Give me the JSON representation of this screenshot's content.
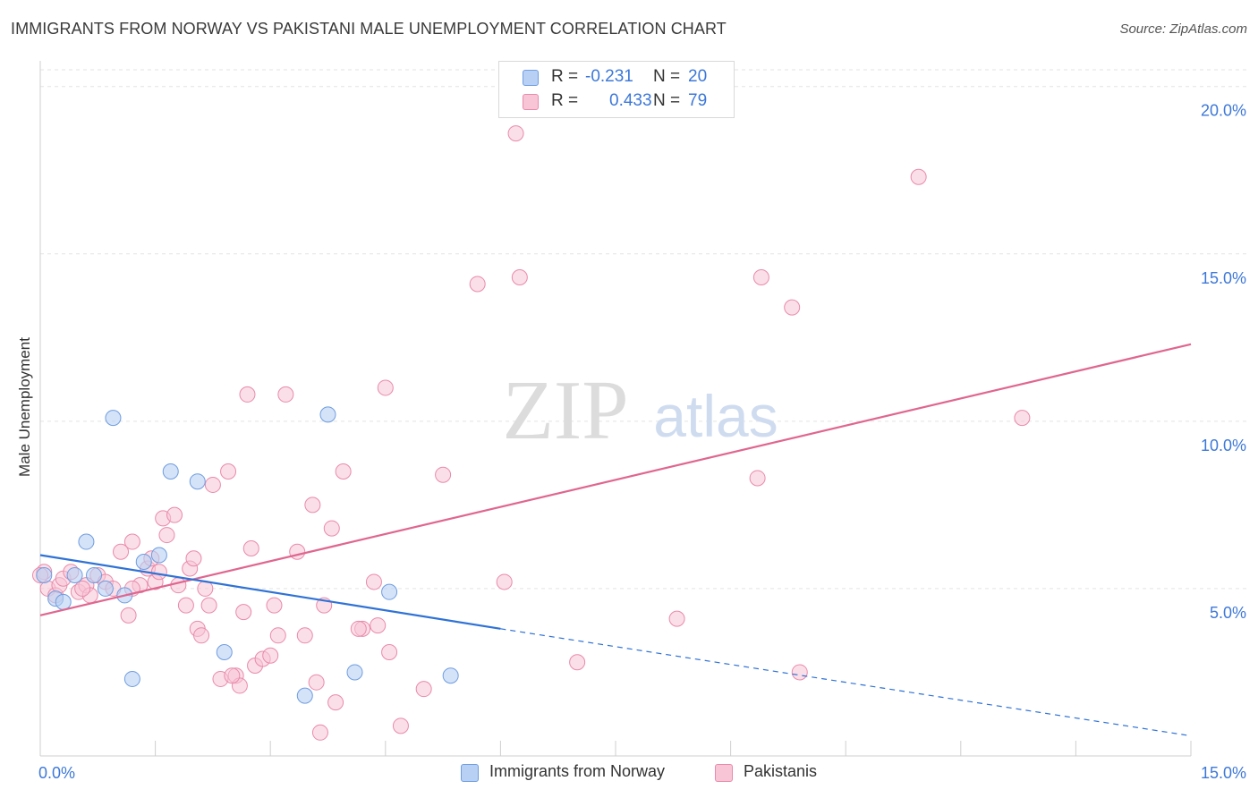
{
  "header": {
    "title": "IMMIGRANTS FROM NORWAY VS PAKISTANI MALE UNEMPLOYMENT CORRELATION CHART",
    "source": "Source: ZipAtlas.com"
  },
  "watermark": {
    "zip": "ZIP",
    "atlas": "atlas"
  },
  "legend_top": {
    "rows": [
      {
        "r_label": "R =",
        "r_value": "-0.231",
        "n_label": "N =",
        "n_value": "20"
      },
      {
        "r_label": "R =",
        "r_value": "0.433",
        "n_label": "N =",
        "n_value": "79"
      }
    ]
  },
  "legend_bottom": {
    "items": [
      {
        "label": "Immigrants from Norway"
      },
      {
        "label": "Pakistanis"
      }
    ]
  },
  "colors": {
    "norway_fill": "#b8d0f4",
    "norway_stroke": "#6f9de0",
    "norway_line": "#2f72d6",
    "pak_fill": "#f8c5d6",
    "pak_stroke": "#e98aab",
    "pak_line": "#e0668f",
    "grid": "#e3e3e3",
    "tick_label": "#3d78d8"
  },
  "chart_data": {
    "type": "scatter",
    "title": "IMMIGRANTS FROM NORWAY VS PAKISTANI MALE UNEMPLOYMENT CORRELATION CHART",
    "xlabel": "",
    "ylabel": "Male Unemployment",
    "xlim": [
      0,
      15
    ],
    "ylim": [
      0,
      20.5
    ],
    "x_tick_labels": [
      "0.0%",
      "15.0%"
    ],
    "y_ticks": [
      5,
      10,
      15,
      20
    ],
    "y_tick_labels": [
      "5.0%",
      "10.0%",
      "15.0%",
      "20.0%"
    ],
    "grid": "horizontal dashed",
    "legend_position": "top-center and bottom",
    "series": [
      {
        "name": "Immigrants from Norway",
        "r": -0.231,
        "n": 20,
        "trend": {
          "x0": 0.0,
          "y0": 6.0,
          "x_solid_end": 6.0,
          "y_solid_end": 3.8,
          "x1": 15.0,
          "y1": 0.6
        },
        "points": [
          [
            0.05,
            5.4
          ],
          [
            0.2,
            4.7
          ],
          [
            0.3,
            4.6
          ],
          [
            0.45,
            5.4
          ],
          [
            0.6,
            6.4
          ],
          [
            0.7,
            5.4
          ],
          [
            0.85,
            5.0
          ],
          [
            0.95,
            10.1
          ],
          [
            1.1,
            4.8
          ],
          [
            1.2,
            2.3
          ],
          [
            1.35,
            5.8
          ],
          [
            1.55,
            6.0
          ],
          [
            1.7,
            8.5
          ],
          [
            2.05,
            8.2
          ],
          [
            2.4,
            3.1
          ],
          [
            3.45,
            1.8
          ],
          [
            3.75,
            10.2
          ],
          [
            4.1,
            2.5
          ],
          [
            4.55,
            4.9
          ],
          [
            5.35,
            2.4
          ]
        ]
      },
      {
        "name": "Pakistanis",
        "r": 0.433,
        "n": 79,
        "trend": {
          "x0": 0.0,
          "y0": 4.2,
          "x1": 15.0,
          "y1": 12.3
        },
        "points": [
          [
            0.05,
            5.5
          ],
          [
            0.1,
            5.0
          ],
          [
            0.2,
            4.8
          ],
          [
            0.25,
            5.1
          ],
          [
            0.3,
            5.3
          ],
          [
            0.4,
            5.5
          ],
          [
            0.5,
            4.9
          ],
          [
            0.6,
            5.1
          ],
          [
            0.65,
            4.8
          ],
          [
            0.75,
            5.4
          ],
          [
            0.85,
            5.2
          ],
          [
            0.95,
            5.0
          ],
          [
            1.05,
            6.1
          ],
          [
            1.15,
            4.2
          ],
          [
            1.2,
            6.4
          ],
          [
            1.3,
            5.1
          ],
          [
            1.4,
            5.6
          ],
          [
            1.45,
            5.9
          ],
          [
            1.5,
            5.2
          ],
          [
            1.55,
            5.5
          ],
          [
            1.6,
            7.1
          ],
          [
            1.65,
            6.6
          ],
          [
            1.75,
            7.2
          ],
          [
            1.8,
            5.1
          ],
          [
            1.9,
            4.5
          ],
          [
            1.95,
            5.6
          ],
          [
            2.0,
            5.9
          ],
          [
            2.05,
            3.8
          ],
          [
            2.1,
            3.6
          ],
          [
            2.15,
            5.0
          ],
          [
            2.2,
            4.5
          ],
          [
            2.25,
            8.1
          ],
          [
            2.35,
            2.3
          ],
          [
            2.45,
            8.5
          ],
          [
            2.55,
            2.4
          ],
          [
            2.6,
            2.1
          ],
          [
            2.65,
            4.3
          ],
          [
            2.7,
            10.8
          ],
          [
            2.75,
            6.2
          ],
          [
            2.8,
            2.7
          ],
          [
            2.9,
            2.9
          ],
          [
            3.0,
            3.0
          ],
          [
            3.05,
            4.5
          ],
          [
            3.1,
            3.6
          ],
          [
            3.2,
            10.8
          ],
          [
            3.35,
            6.1
          ],
          [
            3.45,
            3.6
          ],
          [
            3.55,
            7.5
          ],
          [
            3.6,
            2.2
          ],
          [
            3.7,
            4.5
          ],
          [
            3.8,
            6.8
          ],
          [
            3.85,
            1.6
          ],
          [
            3.95,
            8.5
          ],
          [
            4.2,
            3.8
          ],
          [
            4.35,
            5.2
          ],
          [
            4.4,
            3.9
          ],
          [
            4.5,
            11.0
          ],
          [
            4.55,
            3.1
          ],
          [
            4.7,
            0.9
          ],
          [
            5.0,
            2.0
          ],
          [
            5.25,
            8.4
          ],
          [
            5.7,
            14.1
          ],
          [
            6.05,
            5.2
          ],
          [
            6.2,
            18.6
          ],
          [
            6.25,
            14.3
          ],
          [
            7.0,
            2.8
          ],
          [
            8.3,
            4.1
          ],
          [
            9.35,
            8.3
          ],
          [
            9.4,
            14.3
          ],
          [
            9.8,
            13.4
          ],
          [
            9.9,
            2.5
          ],
          [
            11.45,
            17.3
          ],
          [
            12.8,
            10.1
          ],
          [
            0.0,
            5.4
          ],
          [
            3.65,
            0.7
          ],
          [
            1.2,
            5.0
          ],
          [
            0.55,
            5.0
          ],
          [
            2.5,
            2.4
          ],
          [
            4.15,
            3.8
          ]
        ]
      }
    ]
  }
}
